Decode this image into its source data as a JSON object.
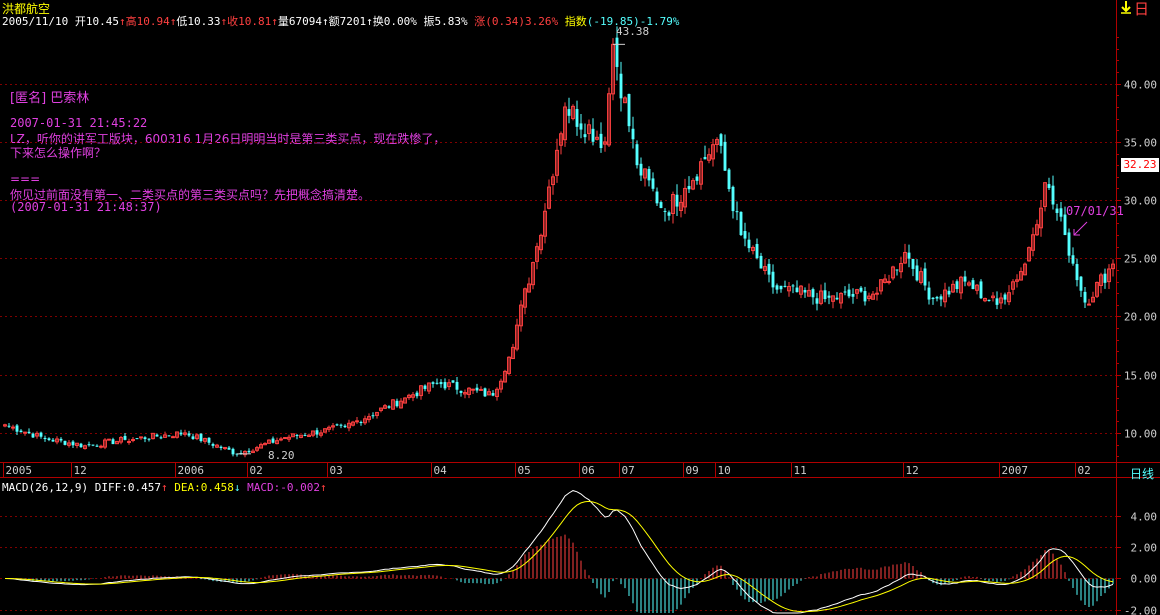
{
  "stock_name": "洪都航空",
  "info_bar": {
    "date": "2005/11/10",
    "open_label": "开",
    "open": "10.45",
    "open_arrow": "↑",
    "high_label": "高",
    "high": "10.94",
    "high_arrow": "↑",
    "low_label": "低",
    "low": "10.33",
    "low_arrow": "↑",
    "close_label": "收",
    "close": "10.81",
    "close_arrow": "↑",
    "volume_label": "量",
    "volume": "67094",
    "volume_arrow": "↑",
    "amount_label": "额",
    "amount": "7201",
    "amount_arrow": "↑",
    "turnover_label": "换",
    "turnover": "0.00%",
    "amplitude_label": "振",
    "amplitude": "5.83%",
    "change_label": "涨",
    "change": "(0.34)3.26%",
    "index_label": "指数",
    "index": "(-19.85)-1.79%"
  },
  "period_label": "日线",
  "top_right_icon": "down-arrow-icon",
  "top_right_text": "日",
  "current_price_tag": "32.23",
  "comment": {
    "author": "[匿名] 巴索林",
    "time1": "2007-01-31 21:45:22",
    "line1": "LZ，听你的讲军工版块，600316 1月26日明明当时是第三类买点，现在跌惨了，",
    "line2": "下来怎么操作啊？",
    "sep": "===",
    "line3": "你见过前面没有第一、二类买点的第三类买点吗？先把概念搞清楚。",
    "time2": "(2007-01-31 21:48:37)"
  },
  "annotations": {
    "max_label": "43.38",
    "min_label": "8.20",
    "date_note": "07/01/31"
  },
  "macd_bar": {
    "label": "MACD(26,12,9)",
    "diff_label": "DIFF:",
    "diff": "0.457",
    "diff_arrow": "↑",
    "dea_label": "DEA:",
    "dea": "0.458",
    "dea_arrow": "↓",
    "macd_label": "MACD:",
    "macd": "-0.002",
    "macd_arrow": "↑"
  },
  "colors": {
    "up": "#ff4040",
    "down": "#54ffff",
    "grid": "#800000",
    "axis": "#b00000",
    "diff_line": "#ffffff",
    "dea_line": "#ffff00",
    "comment": "#e040e0"
  },
  "chart_data": [
    {
      "type": "candlestick",
      "title": "洪都航空",
      "ylim": [
        7.5,
        45.3
      ],
      "y_ticks": [
        "10.00",
        "15.00",
        "20.00",
        "25.00",
        "30.00",
        "35.00",
        "40.00"
      ],
      "y_tick_values": [
        10,
        15,
        20,
        25,
        30,
        35,
        40
      ],
      "x_tick_labels": [
        "2005",
        "12",
        "2006",
        "02",
        "03",
        "04",
        "05",
        "06",
        "07",
        "09",
        "10",
        "11",
        "12",
        "2007",
        "02"
      ],
      "x_tick_index": [
        0,
        17,
        43,
        61,
        81,
        107,
        128,
        144,
        154,
        170,
        178,
        197,
        225,
        249,
        268
      ],
      "n_bars": 278,
      "key_points": [
        {
          "i": 0,
          "close": 10.7
        },
        {
          "i": 10,
          "close": 9.5
        },
        {
          "i": 20,
          "close": 8.9
        },
        {
          "i": 30,
          "close": 9.4
        },
        {
          "i": 45,
          "close": 10.0
        },
        {
          "i": 58,
          "close": 8.2
        },
        {
          "i": 70,
          "close": 9.6
        },
        {
          "i": 85,
          "close": 10.5
        },
        {
          "i": 100,
          "close": 13.0
        },
        {
          "i": 108,
          "close": 14.3
        },
        {
          "i": 122,
          "close": 13.2
        },
        {
          "i": 126,
          "close": 16.5
        },
        {
          "i": 133,
          "close": 26.0
        },
        {
          "i": 140,
          "close": 38.0
        },
        {
          "i": 150,
          "close": 35.0
        },
        {
          "i": 152,
          "close": 43.38
        },
        {
          "i": 158,
          "close": 33.0
        },
        {
          "i": 165,
          "close": 29.0
        },
        {
          "i": 170,
          "close": 31.0
        },
        {
          "i": 178,
          "close": 35.2
        },
        {
          "i": 184,
          "close": 27.0
        },
        {
          "i": 192,
          "close": 22.5
        },
        {
          "i": 205,
          "close": 21.5
        },
        {
          "i": 218,
          "close": 22.0
        },
        {
          "i": 225,
          "close": 25.5
        },
        {
          "i": 232,
          "close": 21.5
        },
        {
          "i": 240,
          "close": 23.0
        },
        {
          "i": 248,
          "close": 21.0
        },
        {
          "i": 255,
          "close": 24.5
        },
        {
          "i": 260,
          "close": 31.5
        },
        {
          "i": 265,
          "close": 27.0
        },
        {
          "i": 270,
          "close": 21.2
        },
        {
          "i": 277,
          "close": 24.5
        }
      ],
      "max": {
        "value": 43.38
      },
      "min": {
        "value": 8.2
      }
    },
    {
      "type": "macd",
      "title": "MACD(26,12,9)",
      "ylim": [
        -2.2,
        6.4
      ],
      "y_ticks": [
        "4.00",
        "2.00",
        "0.00",
        "-2.00"
      ],
      "y_tick_values": [
        4,
        2,
        0,
        -2
      ],
      "series": [
        {
          "name": "DIFF",
          "last": 0.457
        },
        {
          "name": "DEA",
          "last": 0.458
        },
        {
          "name": "MACD",
          "last": -0.002
        }
      ]
    }
  ]
}
